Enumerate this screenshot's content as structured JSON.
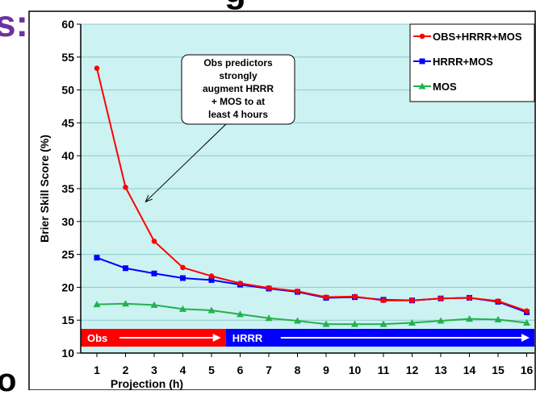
{
  "slide": {
    "colon_fragment": "s:",
    "bottom_fragment": "o",
    "top_fragment": "g"
  },
  "chart_data": {
    "type": "line",
    "xlabel": "Projection (h)",
    "ylabel": "Brier Skill Score  (%)",
    "x": [
      1,
      2,
      3,
      4,
      5,
      6,
      7,
      8,
      9,
      10,
      11,
      12,
      13,
      14,
      15,
      16
    ],
    "ylim": [
      10,
      60
    ],
    "yticks": [
      10,
      15,
      20,
      25,
      30,
      35,
      40,
      45,
      50,
      55,
      60
    ],
    "grid": true,
    "legend_position": "top-right",
    "series": [
      {
        "name": "OBS+HRRR+MOS",
        "color": "#ff0000",
        "marker": "circle",
        "values": [
          53.3,
          35.2,
          27.0,
          23.0,
          21.7,
          20.6,
          19.9,
          19.4,
          18.5,
          18.6,
          18.0,
          18.0,
          18.3,
          18.4,
          17.9,
          16.4
        ]
      },
      {
        "name": "HRRR+MOS",
        "color": "#0000ff",
        "marker": "square",
        "values": [
          24.5,
          22.9,
          22.1,
          21.4,
          21.1,
          20.4,
          19.8,
          19.3,
          18.4,
          18.5,
          18.1,
          18.0,
          18.3,
          18.4,
          17.8,
          16.2
        ]
      },
      {
        "name": "MOS",
        "color": "#22b24c",
        "marker": "triangle",
        "values": [
          17.4,
          17.5,
          17.3,
          16.7,
          16.5,
          15.9,
          15.3,
          14.9,
          14.4,
          14.4,
          14.4,
          14.6,
          14.9,
          15.2,
          15.1,
          14.6
        ]
      }
    ],
    "annotation": {
      "lines": [
        "Obs predictors",
        "strongly",
        "augment HRRR",
        "+ MOS to at",
        "least 4 hours"
      ],
      "arrow_to": {
        "x": 2.7,
        "y": 33
      }
    },
    "bands": [
      {
        "label": "Obs",
        "from": 1,
        "to": 5.5,
        "color": "#ff0000"
      },
      {
        "label": "HRRR",
        "from": 5.5,
        "to": 16,
        "color": "#0000ff"
      }
    ],
    "colors": {
      "plot_background": "#ccf2f2",
      "gridline": "#8fc9c9"
    }
  }
}
